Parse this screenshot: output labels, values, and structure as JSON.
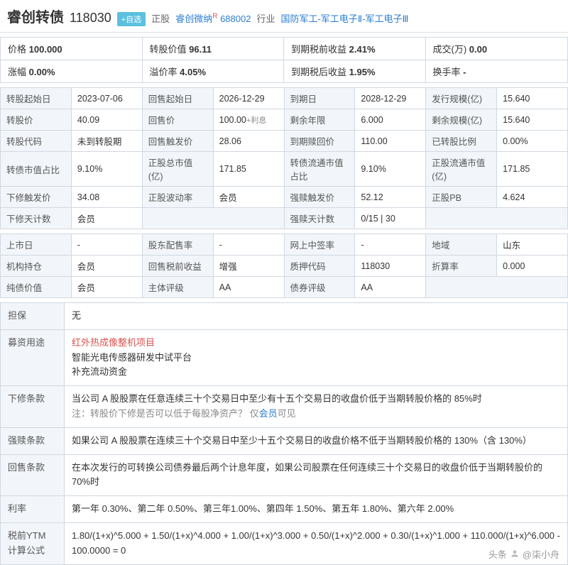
{
  "header": {
    "bond_name": "睿创转债",
    "bond_code": "118030",
    "add_opt": "+自选",
    "stock_label": "正股",
    "stock_name": "睿创微纳",
    "stock_sup": "R",
    "stock_code": "688002",
    "industry_label": "行业",
    "industry": "国防军工-军工电子Ⅱ-军工电子Ⅲ"
  },
  "summary": [
    {
      "label": "价格",
      "value": "100.000"
    },
    {
      "label": "转股价值",
      "value": "96.11"
    },
    {
      "label": "到期税前收益",
      "value": "2.41%"
    },
    {
      "label": "成交(万)",
      "value": "0.00"
    },
    {
      "label": "涨幅",
      "value": "0.00%"
    },
    {
      "label": "溢价率",
      "value": "4.05%"
    },
    {
      "label": "到期税后收益",
      "value": "1.95%"
    },
    {
      "label": "换手率",
      "value": "-"
    }
  ],
  "info1": [
    [
      "转股起始日",
      "2023-07-06",
      "回售起始日",
      "2026-12-29",
      "到期日",
      "2028-12-29",
      "发行规模(亿)",
      "15.640"
    ],
    [
      "转股价",
      "40.09",
      "回售价",
      "100.00+利息",
      "剩余年限",
      "6.000",
      "剩余规模(亿)",
      "15.640"
    ],
    [
      "转股代码",
      "未到转股期",
      "回售触发价",
      "28.06",
      "到期赎回价",
      "110.00",
      "已转股比例",
      "0.00%"
    ],
    [
      "转债市值占比",
      "9.10%",
      "正股总市值(亿)",
      "171.85",
      "转债流通市值占比",
      "9.10%",
      "正股流通市值(亿)",
      "171.85"
    ],
    [
      "下修触发价",
      "34.08",
      "正股波动率",
      "会员",
      "强赎触发价",
      "52.12",
      "正股PB",
      "4.624"
    ],
    [
      "下修天计数",
      "会员",
      "",
      "",
      "强赎天计数",
      "0/15 | 30",
      "",
      ""
    ]
  ],
  "info2": [
    [
      "上市日",
      "-",
      "股东配售率",
      "-",
      "网上中签率",
      "-",
      "地域",
      "山东"
    ],
    [
      "机构持仓",
      "会员",
      "回售税前收益",
      "增强",
      "质押代码",
      "118030",
      "折算率",
      "0.000"
    ],
    [
      "纯债价值",
      "会员",
      "主体评级",
      "AA",
      "债券评级",
      "AA",
      "",
      ""
    ]
  ],
  "terms": {
    "担保": "无",
    "募资用途": "红外热成像整机项目\n智能光电传感器研发中试平台\n补充流动资金",
    "下修条款": "当公司 A 股股票在任意连续三十个交易日中至少有十五个交易日的收盘价低于当期转股价格的 85%时\n注：转股价下修是否可以低于每股净资产？ 仅会员可见",
    "强赎条款": "如果公司 A 股股票在连续三十个交易日中至少十五个交易日的收盘价格不低于当期转股价格的 130%（含 130%）",
    "回售条款": "在本次发行的可转换公司债券最后两个计息年度，如果公司股票在任何连续三十个交易日的收盘价低于当期转股价的 70%时",
    "利率": "第一年 0.30%、第二年 0.50%、第三年1.00%、第四年 1.50%、第五年 1.80%、第六年 2.00%",
    "税前YTM计算公式": "1.80/(1+x)^5.000 + 1.50/(1+x)^4.000 + 1.00/(1+x)^3.000 + 0.50/(1+x)^2.000 + 0.30/(1+x)^1.000 + 110.000/(1+x)^6.000 - 100.0000 = 0"
  },
  "footer": {
    "source": "头条",
    "author": "@柒小舟"
  },
  "style": {
    "link_color": "#2b7dd2",
    "red_color": "#d9534f",
    "header_bg": "#f2f6fa",
    "border_color": "#d0d8e0"
  }
}
